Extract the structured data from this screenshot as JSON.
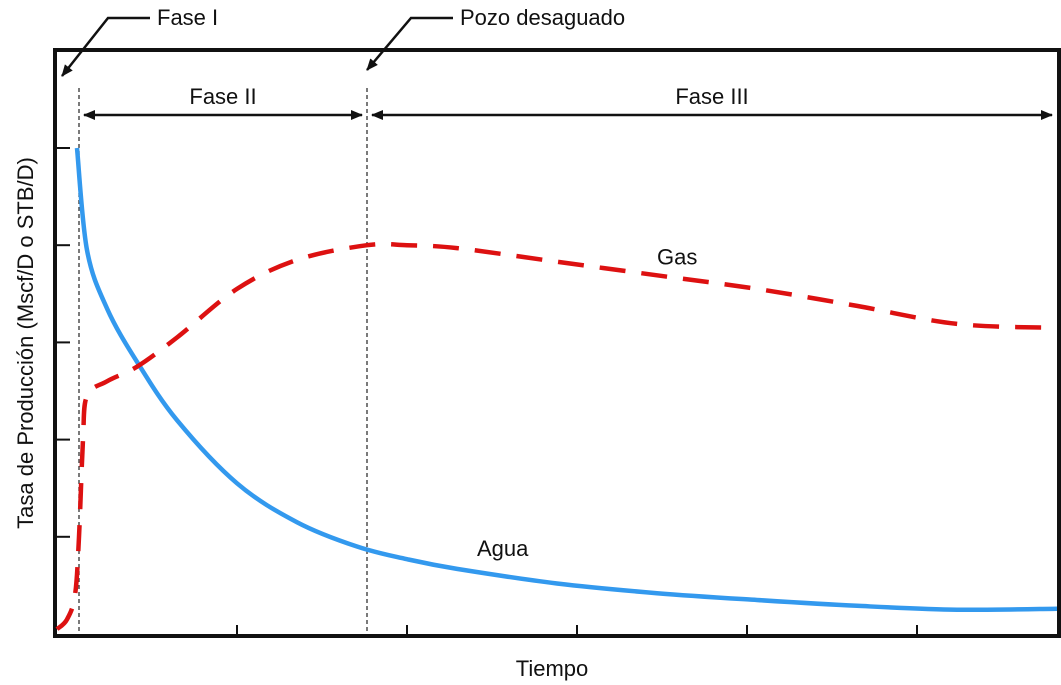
{
  "chart_data": {
    "type": "line",
    "title": "",
    "xlabel": "Tiempo",
    "ylabel": "Tasa de Producción (Mscf/D o STB/D)",
    "xlim": [
      0,
      100
    ],
    "ylim": [
      0,
      100
    ],
    "grid": false,
    "series": [
      {
        "name": "Agua",
        "color": "#3399ee",
        "style": "solid",
        "label_at": [
          42,
          16
        ],
        "x": [
          2,
          3,
          5,
          8,
          12,
          18,
          24,
          30,
          35,
          40,
          50,
          60,
          70,
          80,
          90,
          100
        ],
        "y": [
          100,
          79,
          67,
          56,
          44,
          31,
          23,
          18,
          15.4,
          13.4,
          10.4,
          8.4,
          7,
          5.8,
          5,
          5.2
        ]
      },
      {
        "name": "Gas",
        "color": "#dd1111",
        "style": "dashed",
        "label_at": [
          60,
          76
        ],
        "x": [
          0,
          1,
          1.8,
          2.2,
          2.6,
          3,
          5,
          8,
          12,
          18,
          24,
          31,
          35,
          40,
          50,
          60,
          70,
          80,
          90,
          100
        ],
        "y": [
          1,
          3,
          8,
          20,
          40,
          49,
          52,
          55,
          61,
          71,
          77,
          80,
          80,
          79.4,
          76.6,
          73.8,
          71,
          67.5,
          63.8,
          63
        ]
      }
    ],
    "phase_lines_x": [
      2.2,
      31
    ],
    "phases": [
      {
        "label": "Fase II",
        "from": 2.2,
        "to": 31
      },
      {
        "label": "Fase III",
        "from": 31,
        "to": 100
      }
    ],
    "annotations": [
      {
        "text": "Fase I",
        "at_x": 0
      },
      {
        "text": "Pozo desaguado",
        "at_x": 31
      }
    ],
    "x_ticks": [
      18,
      35,
      52,
      69,
      86
    ],
    "y_ticks": [
      20,
      40,
      60,
      80,
      100
    ]
  }
}
